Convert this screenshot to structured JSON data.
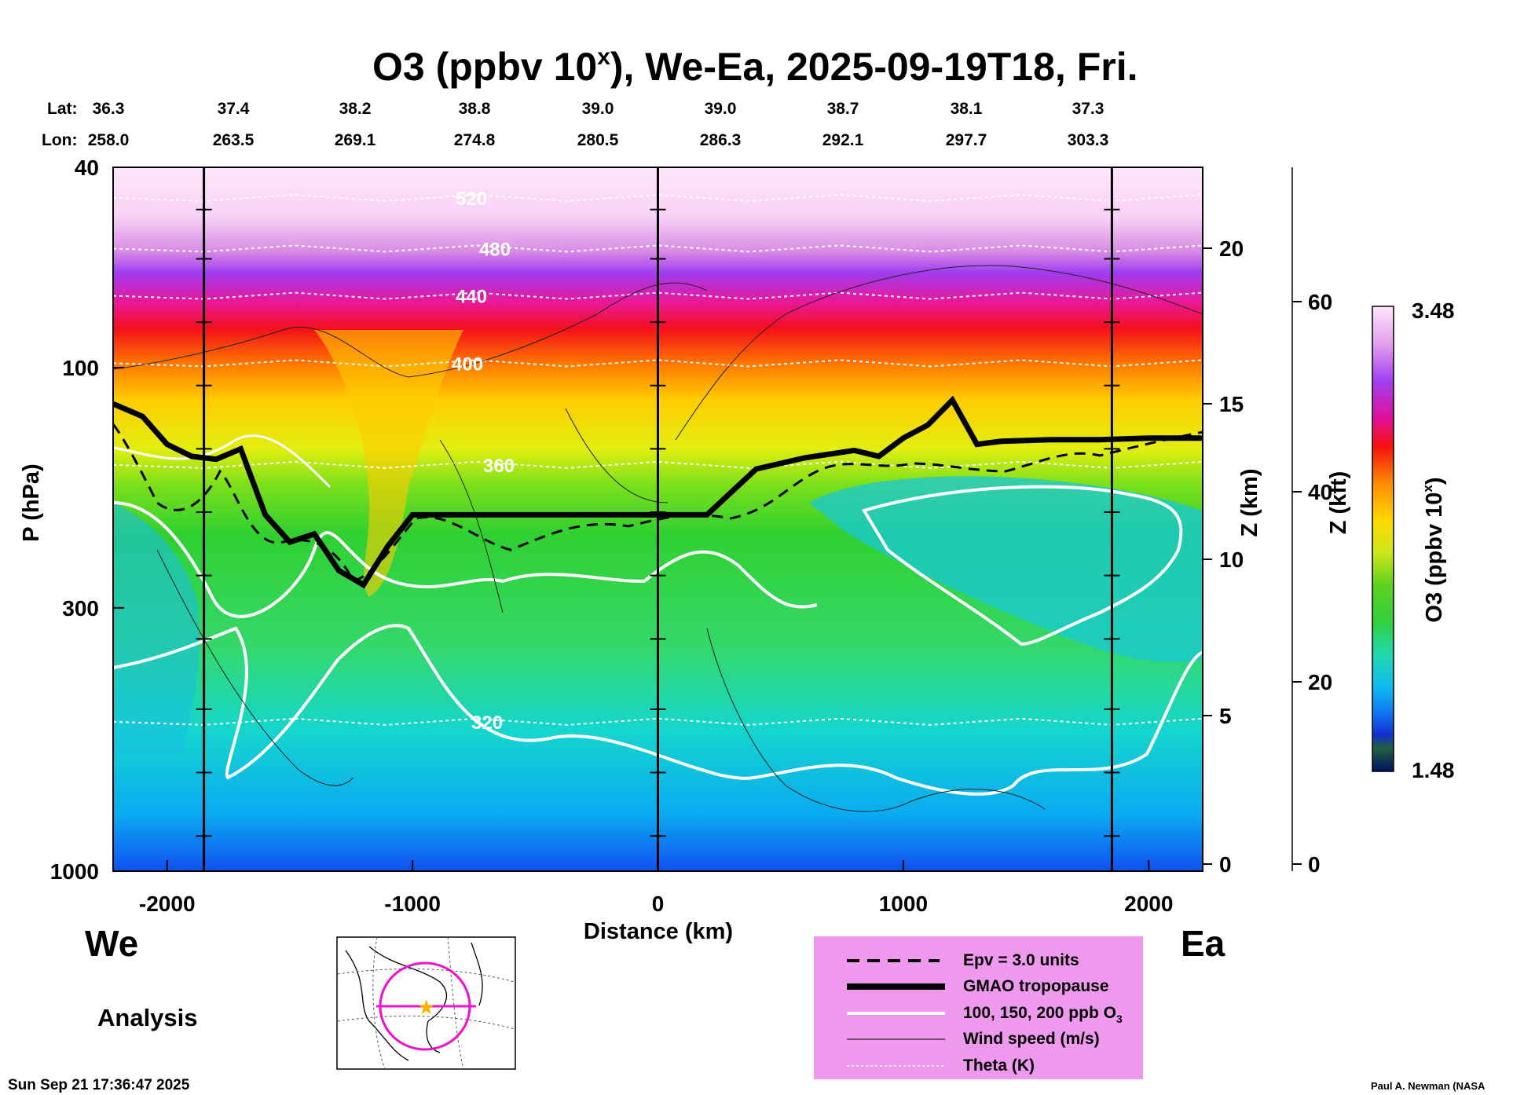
{
  "chart_data": {
    "type": "heatmap",
    "title": "O3 (ppbv 10^x), We-Ea, 2025-09-19T18, Fri.",
    "title_main": "O3 (ppbv 10",
    "title_sup": "x",
    "title_rest": "), We-Ea, 2025-09-19T18, Fri.",
    "lat_label": "Lat:",
    "lon_label": "Lon:",
    "lat_values": [
      "36.3",
      "37.4",
      "38.2",
      "38.8",
      "39.0",
      "39.0",
      "38.7",
      "38.1",
      "37.3"
    ],
    "lon_values": [
      "258.0",
      "263.5",
      "269.1",
      "274.8",
      "280.5",
      "286.3",
      "292.1",
      "297.7",
      "303.3"
    ],
    "xlabel": "Distance (km)",
    "ylabel": "P (hPa)",
    "xlim": [
      -2220,
      2220
    ],
    "ylim": [
      1000,
      40
    ],
    "x_ticks": [
      -2000,
      -1000,
      0,
      1000,
      2000
    ],
    "x_tick_labels": [
      "-2000",
      "-1000",
      "0",
      "1000",
      "2000"
    ],
    "y_ticks": [
      40,
      100,
      300,
      1000
    ],
    "y_tick_labels": [
      "40",
      "100",
      "300",
      "1000"
    ],
    "z_km_label": "Z (km)",
    "z_km_ticks": [
      0,
      5,
      10,
      15,
      20
    ],
    "z_km_tick_labels": [
      "0",
      "5",
      "10",
      "15",
      "20"
    ],
    "z_kft_label": "Z (kft)",
    "z_kft_ticks": [
      0,
      20,
      40,
      60
    ],
    "z_kft_tick_labels": [
      "0",
      "20",
      "40",
      "60"
    ],
    "colorbar": {
      "label": "O3 (ppbv 10^x)",
      "label_main": "O3 (ppbv 10",
      "label_sup": "x",
      "label_rest": ")",
      "max_label": "3.48",
      "min_label": "1.48",
      "range": [
        1.48,
        3.48
      ]
    },
    "vertical_markers_km": [
      -1850,
      0,
      1850
    ],
    "theta_contours": [
      {
        "value": 520,
        "label": "520",
        "x": [
          -2220,
          2220
        ],
        "y": [
          46,
          46
        ]
      },
      {
        "value": 480,
        "label": "480",
        "x": [
          -2220,
          2220
        ],
        "y": [
          58,
          58
        ]
      },
      {
        "value": 440,
        "label": "440",
        "x": [
          -2220,
          2220
        ],
        "y": [
          72,
          72
        ]
      },
      {
        "value": 400,
        "label": "400",
        "x": [
          -2220,
          2220
        ],
        "y": [
          98,
          98
        ]
      },
      {
        "value": 360,
        "label": "360",
        "x": [
          -2220,
          2220
        ],
        "y": [
          156,
          156
        ]
      },
      {
        "value": 320,
        "label": "320",
        "x": [
          -2220,
          2220
        ],
        "y": [
          505,
          505
        ]
      }
    ],
    "tropopause": {
      "x": [
        -2220,
        -2100,
        -2000,
        -1900,
        -1800,
        -1700,
        -1600,
        -1500,
        -1400,
        -1300,
        -1200,
        -1100,
        -1000,
        -500,
        0,
        200,
        400,
        600,
        800,
        900,
        1000,
        1100,
        1200,
        1300,
        1400,
        1600,
        1800,
        2000,
        2220
      ],
      "y": [
        118,
        125,
        142,
        150,
        152,
        145,
        196,
        222,
        214,
        253,
        270,
        226,
        196,
        196,
        196,
        196,
        159,
        151,
        146,
        150,
        138,
        130,
        116,
        142,
        140,
        139,
        139,
        138,
        138
      ]
    },
    "ozone_fields": [
      {
        "value": 3.48,
        "p": 40
      },
      {
        "value": 3.3,
        "p": 55
      },
      {
        "value": 3.1,
        "p": 70
      },
      {
        "value": 2.9,
        "p": 90
      },
      {
        "value": 2.6,
        "p": 120
      },
      {
        "value": 2.3,
        "p": 160
      },
      {
        "value": 2.1,
        "p": 250
      },
      {
        "value": 1.95,
        "p": 600
      },
      {
        "value": 1.7,
        "p": 1000
      }
    ],
    "legend": {
      "entries": [
        {
          "label": "Epv = 3.0 units",
          "style": "dashed-black"
        },
        {
          "label": "GMAO tropopause",
          "style": "thick-black"
        },
        {
          "label": "100, 150, 200 ppb O",
          "sub": "3",
          "style": "white"
        },
        {
          "label": "Wind speed (m/s)",
          "style": "thin-black"
        },
        {
          "label": "Theta (K)",
          "style": "dotted-white"
        }
      ],
      "background": "#ee99ee"
    },
    "inset_map": "locator-map"
  },
  "labels": {
    "west": "We",
    "east": "Ea",
    "analysis": "Analysis",
    "timestamp": "Sun Sep 21 17:36:47 2025",
    "credit": "Paul A. Newman (NASA"
  }
}
